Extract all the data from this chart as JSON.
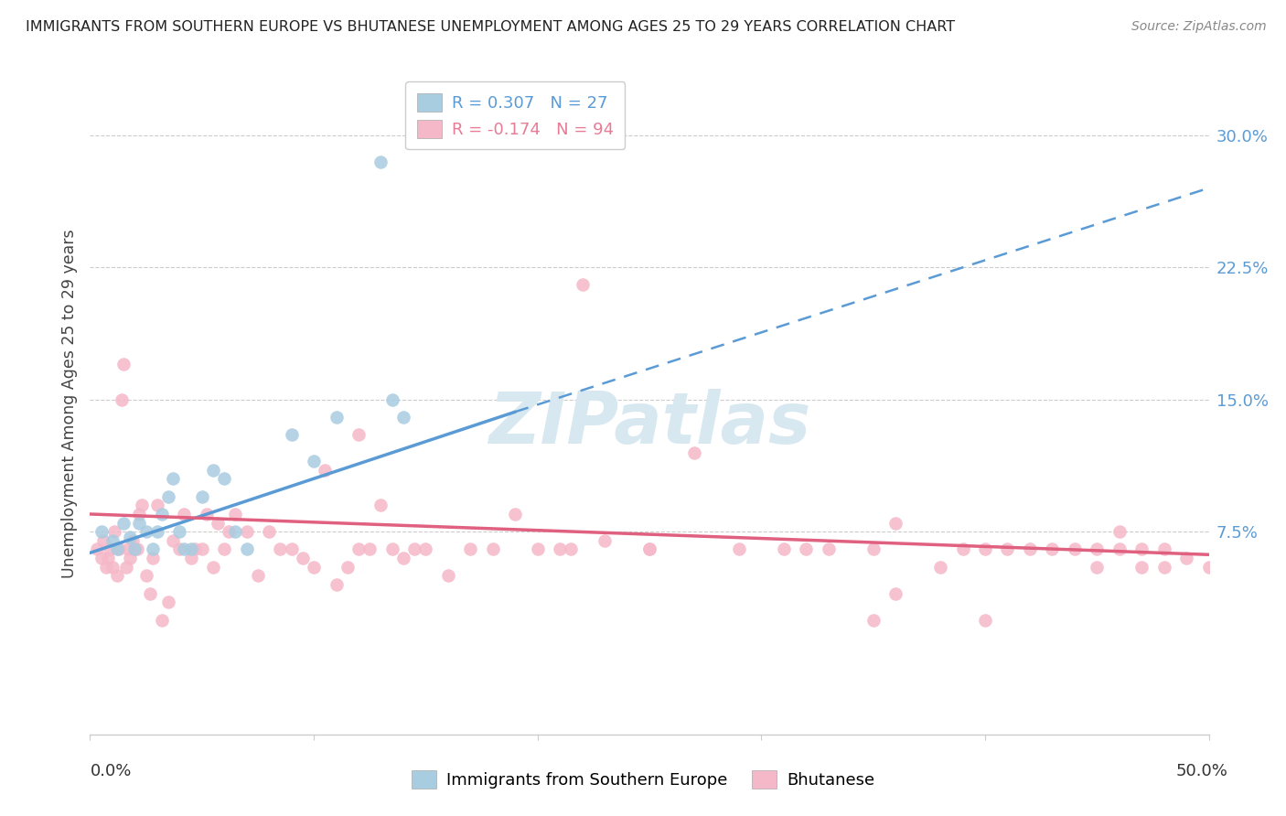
{
  "title": "IMMIGRANTS FROM SOUTHERN EUROPE VS BHUTANESE UNEMPLOYMENT AMONG AGES 25 TO 29 YEARS CORRELATION CHART",
  "source": "Source: ZipAtlas.com",
  "ylabel": "Unemployment Among Ages 25 to 29 years",
  "ytick_labels": [
    "7.5%",
    "15.0%",
    "22.5%",
    "30.0%"
  ],
  "ytick_values": [
    0.075,
    0.15,
    0.225,
    0.3
  ],
  "xlim": [
    0.0,
    0.5
  ],
  "ylim": [
    -0.04,
    0.335
  ],
  "legend_r1": "R = 0.307",
  "legend_n1": "N = 27",
  "legend_r2": "R = -0.174",
  "legend_n2": "N = 94",
  "color_blue": "#a8cce0",
  "color_pink": "#f5b8c8",
  "color_blue_line": "#5b9bd5",
  "color_pink_line": "#e06080",
  "watermark": "ZIPatlas",
  "blue_line_x0": 0.0,
  "blue_line_y0": 0.063,
  "blue_line_x1": 0.19,
  "blue_line_y1": 0.143,
  "blue_line_dash_x0": 0.19,
  "blue_line_dash_y0": 0.143,
  "blue_line_dash_x1": 0.5,
  "blue_line_dash_y1": 0.27,
  "pink_line_x0": 0.0,
  "pink_line_y0": 0.085,
  "pink_line_x1": 0.5,
  "pink_line_y1": 0.062,
  "blue_points": [
    [
      0.005,
      0.075
    ],
    [
      0.01,
      0.07
    ],
    [
      0.012,
      0.065
    ],
    [
      0.015,
      0.08
    ],
    [
      0.018,
      0.072
    ],
    [
      0.02,
      0.065
    ],
    [
      0.022,
      0.08
    ],
    [
      0.025,
      0.075
    ],
    [
      0.028,
      0.065
    ],
    [
      0.03,
      0.075
    ],
    [
      0.032,
      0.085
    ],
    [
      0.035,
      0.095
    ],
    [
      0.037,
      0.105
    ],
    [
      0.04,
      0.075
    ],
    [
      0.042,
      0.065
    ],
    [
      0.045,
      0.065
    ],
    [
      0.05,
      0.095
    ],
    [
      0.055,
      0.11
    ],
    [
      0.06,
      0.105
    ],
    [
      0.065,
      0.075
    ],
    [
      0.07,
      0.065
    ],
    [
      0.09,
      0.13
    ],
    [
      0.1,
      0.115
    ],
    [
      0.11,
      0.14
    ],
    [
      0.135,
      0.15
    ],
    [
      0.14,
      0.14
    ],
    [
      0.13,
      0.285
    ]
  ],
  "pink_points": [
    [
      0.003,
      0.065
    ],
    [
      0.005,
      0.06
    ],
    [
      0.006,
      0.07
    ],
    [
      0.007,
      0.055
    ],
    [
      0.008,
      0.06
    ],
    [
      0.009,
      0.065
    ],
    [
      0.01,
      0.055
    ],
    [
      0.011,
      0.075
    ],
    [
      0.012,
      0.05
    ],
    [
      0.013,
      0.065
    ],
    [
      0.014,
      0.15
    ],
    [
      0.015,
      0.17
    ],
    [
      0.016,
      0.055
    ],
    [
      0.017,
      0.065
    ],
    [
      0.018,
      0.06
    ],
    [
      0.019,
      0.07
    ],
    [
      0.02,
      0.065
    ],
    [
      0.021,
      0.065
    ],
    [
      0.022,
      0.085
    ],
    [
      0.023,
      0.09
    ],
    [
      0.025,
      0.05
    ],
    [
      0.027,
      0.04
    ],
    [
      0.028,
      0.06
    ],
    [
      0.03,
      0.09
    ],
    [
      0.032,
      0.025
    ],
    [
      0.035,
      0.035
    ],
    [
      0.037,
      0.07
    ],
    [
      0.04,
      0.065
    ],
    [
      0.042,
      0.085
    ],
    [
      0.045,
      0.06
    ],
    [
      0.047,
      0.065
    ],
    [
      0.05,
      0.065
    ],
    [
      0.052,
      0.085
    ],
    [
      0.055,
      0.055
    ],
    [
      0.057,
      0.08
    ],
    [
      0.06,
      0.065
    ],
    [
      0.062,
      0.075
    ],
    [
      0.065,
      0.085
    ],
    [
      0.07,
      0.075
    ],
    [
      0.075,
      0.05
    ],
    [
      0.08,
      0.075
    ],
    [
      0.085,
      0.065
    ],
    [
      0.09,
      0.065
    ],
    [
      0.095,
      0.06
    ],
    [
      0.1,
      0.055
    ],
    [
      0.105,
      0.11
    ],
    [
      0.11,
      0.045
    ],
    [
      0.115,
      0.055
    ],
    [
      0.12,
      0.065
    ],
    [
      0.125,
      0.065
    ],
    [
      0.13,
      0.09
    ],
    [
      0.135,
      0.065
    ],
    [
      0.14,
      0.06
    ],
    [
      0.145,
      0.065
    ],
    [
      0.15,
      0.065
    ],
    [
      0.16,
      0.05
    ],
    [
      0.17,
      0.065
    ],
    [
      0.18,
      0.065
    ],
    [
      0.19,
      0.085
    ],
    [
      0.2,
      0.065
    ],
    [
      0.21,
      0.065
    ],
    [
      0.215,
      0.065
    ],
    [
      0.22,
      0.215
    ],
    [
      0.23,
      0.07
    ],
    [
      0.25,
      0.065
    ],
    [
      0.27,
      0.12
    ],
    [
      0.29,
      0.065
    ],
    [
      0.31,
      0.065
    ],
    [
      0.32,
      0.065
    ],
    [
      0.33,
      0.065
    ],
    [
      0.35,
      0.065
    ],
    [
      0.36,
      0.08
    ],
    [
      0.38,
      0.055
    ],
    [
      0.39,
      0.065
    ],
    [
      0.4,
      0.065
    ],
    [
      0.41,
      0.065
    ],
    [
      0.42,
      0.065
    ],
    [
      0.43,
      0.065
    ],
    [
      0.44,
      0.065
    ],
    [
      0.45,
      0.065
    ],
    [
      0.46,
      0.065
    ],
    [
      0.47,
      0.065
    ],
    [
      0.48,
      0.065
    ],
    [
      0.49,
      0.06
    ],
    [
      0.5,
      0.055
    ],
    [
      0.46,
      0.075
    ],
    [
      0.47,
      0.055
    ],
    [
      0.48,
      0.055
    ],
    [
      0.35,
      0.025
    ],
    [
      0.36,
      0.04
    ],
    [
      0.4,
      0.025
    ],
    [
      0.45,
      0.055
    ],
    [
      0.12,
      0.13
    ],
    [
      0.25,
      0.065
    ]
  ]
}
